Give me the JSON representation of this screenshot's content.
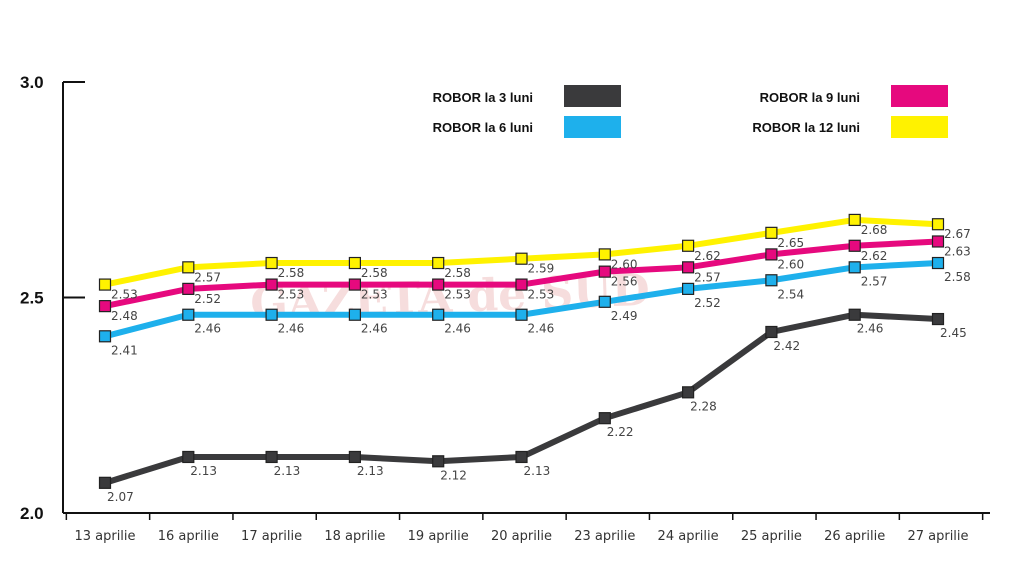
{
  "watermark": "GAZETA de SUD",
  "chart_data": {
    "type": "line",
    "categories": [
      "13 aprilie",
      "16 aprilie",
      "17 aprilie",
      "18 aprilie",
      "19 aprilie",
      "20 aprilie",
      "23 aprilie",
      "24 aprilie",
      "25 aprilie",
      "26 aprilie",
      "27 aprilie"
    ],
    "ylim": [
      2.0,
      3.0
    ],
    "yticks": [
      "2.0",
      "2.5",
      "3.0"
    ],
    "series": [
      {
        "name": "ROBOR la 3 luni",
        "color": "#3a3a3c",
        "values": [
          2.07,
          2.13,
          2.13,
          2.13,
          2.12,
          2.13,
          2.22,
          2.28,
          2.42,
          2.46,
          2.45
        ]
      },
      {
        "name": "ROBOR la 6 luni",
        "color": "#1eb0ec",
        "values": [
          2.41,
          2.46,
          2.46,
          2.46,
          2.46,
          2.46,
          2.49,
          2.52,
          2.54,
          2.57,
          2.58
        ]
      },
      {
        "name": "ROBOR la 9 luni",
        "color": "#e6097e",
        "values": [
          2.48,
          2.52,
          2.53,
          2.53,
          2.53,
          2.53,
          2.56,
          2.57,
          2.6,
          2.62,
          2.63
        ]
      },
      {
        "name": "ROBOR la 12 luni",
        "color": "#fff200",
        "values": [
          2.53,
          2.57,
          2.58,
          2.58,
          2.58,
          2.59,
          2.6,
          2.62,
          2.65,
          2.68,
          2.67
        ]
      }
    ],
    "legend": "top-right",
    "grid": false
  }
}
